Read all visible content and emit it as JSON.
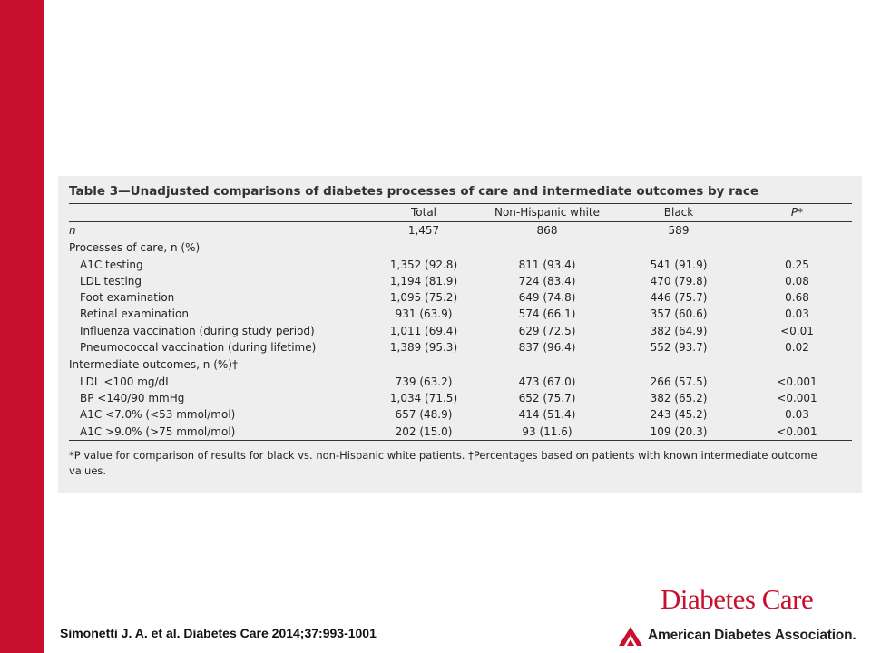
{
  "slide": {
    "citation": "Simonetti J. A. et al. Diabetes Care 2014;37:993-1001",
    "journal_logo": "Diabetes Care",
    "association": "American Diabetes Association.",
    "brand_red": "#c8102e"
  },
  "table": {
    "title": "Table 3—Unadjusted comparisons of diabetes processes of care and intermediate outcomes by race",
    "headers": [
      "",
      "Total",
      "Non-Hispanic white",
      "Black",
      "P*"
    ],
    "n_row": {
      "label": "n",
      "total": "1,457",
      "nhw": "868",
      "black": "589",
      "p": ""
    },
    "section1": {
      "heading": "Processes of care, n (%)",
      "rows": [
        {
          "label": "A1C testing",
          "total": "1,352 (92.8)",
          "nhw": "811 (93.4)",
          "black": "541 (91.9)",
          "p": "0.25"
        },
        {
          "label": "LDL testing",
          "total": "1,194 (81.9)",
          "nhw": "724 (83.4)",
          "black": "470 (79.8)",
          "p": "0.08"
        },
        {
          "label": "Foot examination",
          "total": "1,095 (75.2)",
          "nhw": "649 (74.8)",
          "black": "446 (75.7)",
          "p": "0.68"
        },
        {
          "label": "Retinal examination",
          "total": "931 (63.9)",
          "nhw": "574 (66.1)",
          "black": "357 (60.6)",
          "p": "0.03"
        },
        {
          "label": "Influenza vaccination (during study period)",
          "total": "1,011 (69.4)",
          "nhw": "629 (72.5)",
          "black": "382 (64.9)",
          "p": "<0.01"
        },
        {
          "label": "Pneumococcal vaccination (during lifetime)",
          "total": "1,389 (95.3)",
          "nhw": "837 (96.4)",
          "black": "552 (93.7)",
          "p": "0.02"
        }
      ]
    },
    "section2": {
      "heading": "Intermediate outcomes, n (%)†",
      "rows": [
        {
          "label": "LDL <100 mg/dL",
          "total": "739 (63.2)",
          "nhw": "473 (67.0)",
          "black": "266 (57.5)",
          "p": "<0.001"
        },
        {
          "label": "BP <140/90 mmHg",
          "total": "1,034 (71.5)",
          "nhw": "652 (75.7)",
          "black": "382 (65.2)",
          "p": "<0.001"
        },
        {
          "label": "A1C <7.0% (<53 mmol/mol)",
          "total": "657 (48.9)",
          "nhw": "414 (51.4)",
          "black": "243 (45.2)",
          "p": "0.03"
        },
        {
          "label": "A1C >9.0% (>75 mmol/mol)",
          "total": "202 (15.0)",
          "nhw": "93 (11.6)",
          "black": "109 (20.3)",
          "p": "<0.001"
        }
      ]
    },
    "footnote": "*P value for comparison of results for black vs. non-Hispanic white patients. †Percentages based on patients with known intermediate outcome values."
  }
}
